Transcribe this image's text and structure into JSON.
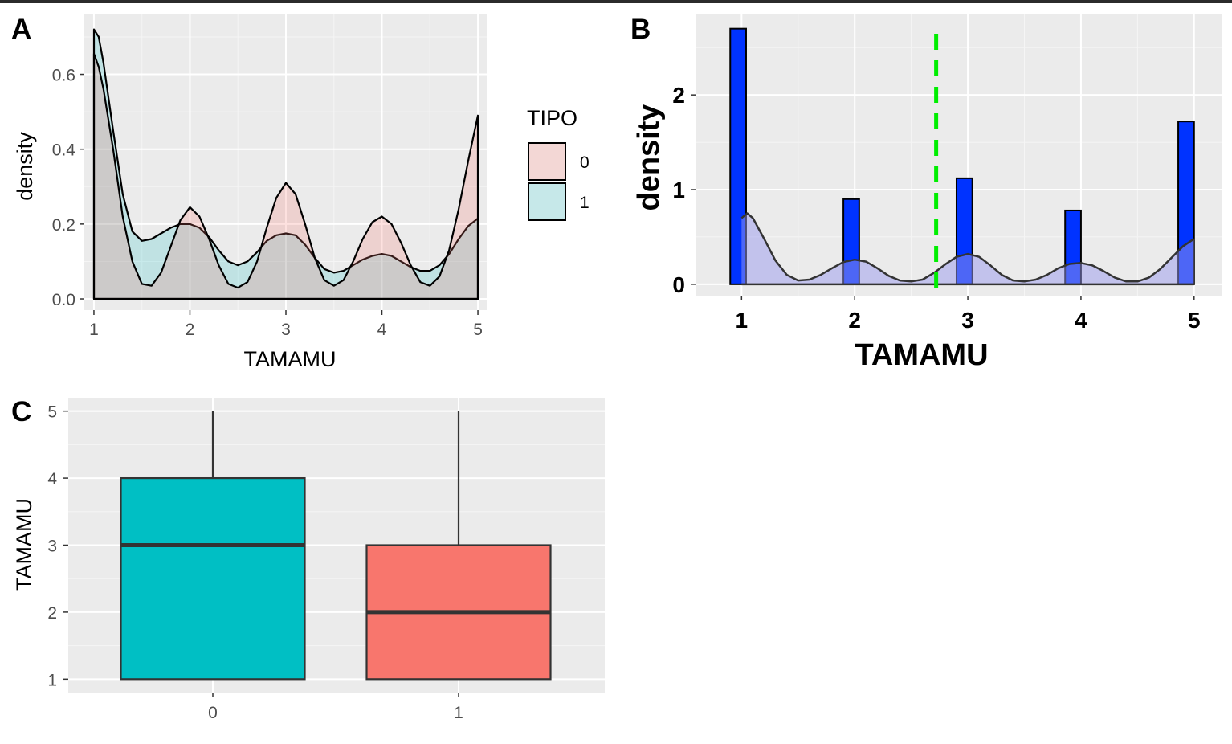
{
  "chart_data": [
    {
      "panel": "A",
      "type": "area",
      "title": "",
      "xlabel": "TAMAMU",
      "ylabel": "density",
      "xlim": [
        0.9,
        5.1
      ],
      "ylim": [
        -0.03,
        0.76
      ],
      "x_ticks": [
        "1",
        "2",
        "3",
        "4",
        "5"
      ],
      "y_ticks": [
        "0.0",
        "0.2",
        "0.4",
        "0.6"
      ],
      "legend_title": "TIPO",
      "legend_position": "right",
      "series": [
        {
          "name": "0",
          "fill": "#F8766D",
          "fill_opacity": 0.22,
          "x": [
            1.0,
            1.05,
            1.1,
            1.2,
            1.3,
            1.4,
            1.5,
            1.6,
            1.7,
            1.8,
            1.9,
            2.0,
            2.1,
            2.2,
            2.3,
            2.4,
            2.5,
            2.6,
            2.7,
            2.8,
            2.9,
            3.0,
            3.1,
            3.2,
            3.3,
            3.4,
            3.5,
            3.6,
            3.7,
            3.8,
            3.9,
            4.0,
            4.1,
            4.2,
            4.3,
            4.4,
            4.5,
            4.6,
            4.7,
            4.8,
            4.9,
            5.0
          ],
          "y": [
            0.655,
            0.62,
            0.56,
            0.4,
            0.22,
            0.1,
            0.04,
            0.035,
            0.07,
            0.14,
            0.21,
            0.245,
            0.22,
            0.16,
            0.09,
            0.04,
            0.03,
            0.045,
            0.1,
            0.19,
            0.27,
            0.31,
            0.28,
            0.2,
            0.11,
            0.05,
            0.035,
            0.05,
            0.1,
            0.16,
            0.205,
            0.22,
            0.2,
            0.15,
            0.09,
            0.045,
            0.035,
            0.06,
            0.13,
            0.24,
            0.37,
            0.49
          ]
        },
        {
          "name": "1",
          "fill": "#00BFC4",
          "fill_opacity": 0.18,
          "x": [
            1.0,
            1.05,
            1.1,
            1.2,
            1.3,
            1.4,
            1.5,
            1.6,
            1.7,
            1.8,
            1.9,
            2.0,
            2.1,
            2.2,
            2.3,
            2.4,
            2.5,
            2.6,
            2.7,
            2.8,
            2.9,
            3.0,
            3.1,
            3.2,
            3.3,
            3.4,
            3.5,
            3.6,
            3.7,
            3.8,
            3.9,
            4.0,
            4.1,
            4.2,
            4.3,
            4.4,
            4.5,
            4.6,
            4.7,
            4.8,
            4.9,
            5.0
          ],
          "y": [
            0.72,
            0.7,
            0.63,
            0.45,
            0.28,
            0.18,
            0.155,
            0.16,
            0.175,
            0.19,
            0.2,
            0.2,
            0.19,
            0.165,
            0.13,
            0.1,
            0.09,
            0.1,
            0.125,
            0.155,
            0.17,
            0.175,
            0.17,
            0.145,
            0.11,
            0.08,
            0.07,
            0.075,
            0.09,
            0.105,
            0.115,
            0.12,
            0.115,
            0.1,
            0.085,
            0.075,
            0.075,
            0.09,
            0.12,
            0.16,
            0.195,
            0.215
          ]
        }
      ]
    },
    {
      "panel": "B",
      "type": "bar",
      "title": "",
      "xlabel": "TAMAMU",
      "ylabel": "density",
      "xlim": [
        0.6,
        5.25
      ],
      "ylim": [
        -0.12,
        2.85
      ],
      "x_ticks": [
        "1",
        "2",
        "3",
        "4",
        "5"
      ],
      "y_ticks": [
        "0",
        "1",
        "2"
      ],
      "bar_width": 0.14,
      "bar_color": "#0033FF",
      "categories": [
        "1",
        "2",
        "3",
        "4",
        "5"
      ],
      "bar_centers": [
        0.97,
        1.97,
        2.97,
        3.93,
        4.93
      ],
      "values": [
        2.7,
        0.9,
        1.12,
        0.78,
        1.72
      ],
      "density_fill": "#9999EE",
      "density_x": [
        1.0,
        1.05,
        1.1,
        1.2,
        1.3,
        1.4,
        1.5,
        1.6,
        1.7,
        1.8,
        1.9,
        2.0,
        2.1,
        2.2,
        2.3,
        2.4,
        2.5,
        2.6,
        2.7,
        2.8,
        2.9,
        3.0,
        3.1,
        3.2,
        3.3,
        3.4,
        3.5,
        3.6,
        3.7,
        3.8,
        3.9,
        4.0,
        4.1,
        4.2,
        4.3,
        4.4,
        4.5,
        4.6,
        4.7,
        4.8,
        4.9,
        5.0
      ],
      "density_y": [
        0.7,
        0.75,
        0.7,
        0.48,
        0.25,
        0.1,
        0.04,
        0.05,
        0.1,
        0.17,
        0.235,
        0.26,
        0.24,
        0.17,
        0.09,
        0.04,
        0.03,
        0.05,
        0.12,
        0.21,
        0.29,
        0.32,
        0.29,
        0.2,
        0.1,
        0.04,
        0.03,
        0.05,
        0.1,
        0.17,
        0.215,
        0.225,
        0.2,
        0.14,
        0.07,
        0.03,
        0.03,
        0.07,
        0.16,
        0.28,
        0.4,
        0.48
      ],
      "vline": {
        "x": 2.72,
        "color": "#00EE00",
        "style": "dashed"
      }
    },
    {
      "panel": "C",
      "type": "boxplot",
      "title": "",
      "xlabel": "",
      "ylabel": "TAMAMU",
      "ylim": [
        0.8,
        5.2
      ],
      "y_ticks": [
        "1",
        "2",
        "3",
        "4",
        "5"
      ],
      "categories": [
        "0",
        "1"
      ],
      "boxes": [
        {
          "name": "0",
          "min": 1,
          "q1": 1,
          "median": 3,
          "q3": 4,
          "max": 5,
          "fill": "#00BFC4"
        },
        {
          "name": "1",
          "min": 1,
          "q1": 1,
          "median": 2,
          "q3": 3,
          "max": 5,
          "fill": "#F8766D"
        }
      ]
    }
  ],
  "panel_labels": [
    "A",
    "B",
    "C"
  ]
}
